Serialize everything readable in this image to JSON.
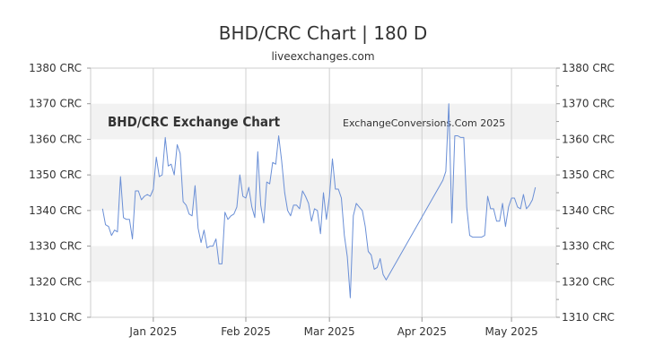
{
  "header": {
    "title": "BHD/CRC Chart | 180 D",
    "subtitle": "liveexchanges.com"
  },
  "watermarks": {
    "left": "BHD/CRC Exchange Chart",
    "right": "ExchangeConversions.Com 2025"
  },
  "colors": {
    "line": "#6a8fd6",
    "band": "#f2f2f2",
    "grid": "#d0d0d0"
  },
  "chart_data": {
    "type": "line",
    "title": "BHD/CRC Chart | 180 D",
    "ylim": [
      1310,
      1380
    ],
    "y_ticks": [
      1310,
      1320,
      1330,
      1340,
      1350,
      1360,
      1370,
      1380
    ],
    "y_tick_labels": [
      "1310 CRC",
      "1320 CRC",
      "1330 CRC",
      "1340 CRC",
      "1350 CRC",
      "1360 CRC",
      "1370 CRC",
      "1380 CRC"
    ],
    "x_range": [
      "2024-12-11",
      "2025-05-16"
    ],
    "x_ticks": [
      "2025-01-01",
      "2025-02-01",
      "2025-03-01",
      "2025-04-01",
      "2025-05-01"
    ],
    "x_tick_labels": [
      "Jan 2025",
      "Feb 2025",
      "Mar 2025",
      "Apr 2025",
      "May 2025"
    ],
    "grid": true,
    "series": [
      {
        "x": [
          "2024-12-15",
          "2024-12-16",
          "2024-12-17",
          "2024-12-18",
          "2024-12-19",
          "2024-12-20",
          "2024-12-21",
          "2024-12-22",
          "2024-12-23",
          "2024-12-24",
          "2024-12-25",
          "2024-12-26",
          "2024-12-27",
          "2024-12-28",
          "2024-12-29",
          "2024-12-30",
          "2024-12-31",
          "2025-01-01",
          "2025-01-02",
          "2025-01-03",
          "2025-01-04",
          "2025-01-05",
          "2025-01-06",
          "2025-01-07",
          "2025-01-08",
          "2025-01-09",
          "2025-01-10",
          "2025-01-11",
          "2025-01-12",
          "2025-01-13",
          "2025-01-14",
          "2025-01-15",
          "2025-01-16",
          "2025-01-17",
          "2025-01-18",
          "2025-01-19",
          "2025-01-20",
          "2025-01-21",
          "2025-01-22",
          "2025-01-23",
          "2025-01-24",
          "2025-01-25",
          "2025-01-26",
          "2025-01-27",
          "2025-01-28",
          "2025-01-29",
          "2025-01-30",
          "2025-01-31",
          "2025-02-01",
          "2025-02-02",
          "2025-02-03",
          "2025-02-04",
          "2025-02-05",
          "2025-02-06",
          "2025-02-07",
          "2025-02-08",
          "2025-02-09",
          "2025-02-10",
          "2025-02-11",
          "2025-02-12",
          "2025-02-13",
          "2025-02-14",
          "2025-02-15",
          "2025-02-16",
          "2025-02-17",
          "2025-02-18",
          "2025-02-19",
          "2025-02-20",
          "2025-02-21",
          "2025-02-22",
          "2025-02-23",
          "2025-02-24",
          "2025-02-25",
          "2025-02-26",
          "2025-02-27",
          "2025-02-28",
          "2025-03-01",
          "2025-03-02",
          "2025-03-03",
          "2025-03-04",
          "2025-03-05",
          "2025-03-06",
          "2025-03-07",
          "2025-03-08",
          "2025-03-09",
          "2025-03-10",
          "2025-03-11",
          "2025-03-12",
          "2025-03-13",
          "2025-03-14",
          "2025-03-15",
          "2025-03-16",
          "2025-03-17",
          "2025-03-18",
          "2025-03-19",
          "2025-03-20",
          "2025-04-08",
          "2025-04-09",
          "2025-04-10",
          "2025-04-11",
          "2025-04-12",
          "2025-04-13",
          "2025-04-14",
          "2025-04-15",
          "2025-04-16",
          "2025-04-17",
          "2025-04-18",
          "2025-04-19",
          "2025-04-20",
          "2025-04-21",
          "2025-04-22",
          "2025-04-23",
          "2025-04-24",
          "2025-04-25",
          "2025-04-26",
          "2025-04-27",
          "2025-04-28",
          "2025-04-29",
          "2025-04-30",
          "2025-05-01",
          "2025-05-02",
          "2025-05-03",
          "2025-05-04",
          "2025-05-05",
          "2025-05-06",
          "2025-05-07",
          "2025-05-08",
          "2025-05-09"
        ],
        "values": [
          1340.5,
          1336,
          1335.5,
          1333,
          1334.5,
          1334,
          1349.5,
          1338,
          1337.5,
          1337.5,
          1332,
          1345.5,
          1345.5,
          1343,
          1344,
          1344.5,
          1344,
          1346,
          1355,
          1349.5,
          1350,
          1360.5,
          1352.5,
          1353,
          1350,
          1358.5,
          1356,
          1342.5,
          1341.5,
          1339,
          1338.5,
          1347,
          1335,
          1331,
          1334.5,
          1329.5,
          1330,
          1330,
          1332,
          1325,
          1325,
          1339.5,
          1337.5,
          1338.5,
          1339,
          1341,
          1350,
          1344,
          1343.5,
          1346.5,
          1341,
          1338,
          1356.5,
          1341.5,
          1336.5,
          1348,
          1347.5,
          1353.5,
          1353,
          1361,
          1354,
          1345,
          1340,
          1338.5,
          1341.5,
          1341.5,
          1340.5,
          1345.5,
          1344,
          1342,
          1337,
          1340.5,
          1340,
          1333.5,
          1345,
          1337.5,
          1344,
          1354.5,
          1346,
          1346,
          1343.5,
          1333,
          1327,
          1315.5,
          1338.5,
          1342,
          1341,
          1340,
          1335.5,
          1328.5,
          1327.5,
          1323.5,
          1324,
          1326.5,
          1322,
          1320.5,
          1348.5,
          1351,
          1370,
          1336.5,
          1361,
          1361,
          1360.5,
          1360.5,
          1341,
          1333,
          1332.5,
          1332.5,
          1332.5,
          1332.5,
          1333,
          1344,
          1340.5,
          1340.5,
          1337,
          1337,
          1342,
          1335.5,
          1341,
          1343.5,
          1343.5,
          1341,
          1340.5,
          1344.5,
          1340.5,
          1341.5,
          1343,
          1346.5
        ]
      }
    ]
  }
}
